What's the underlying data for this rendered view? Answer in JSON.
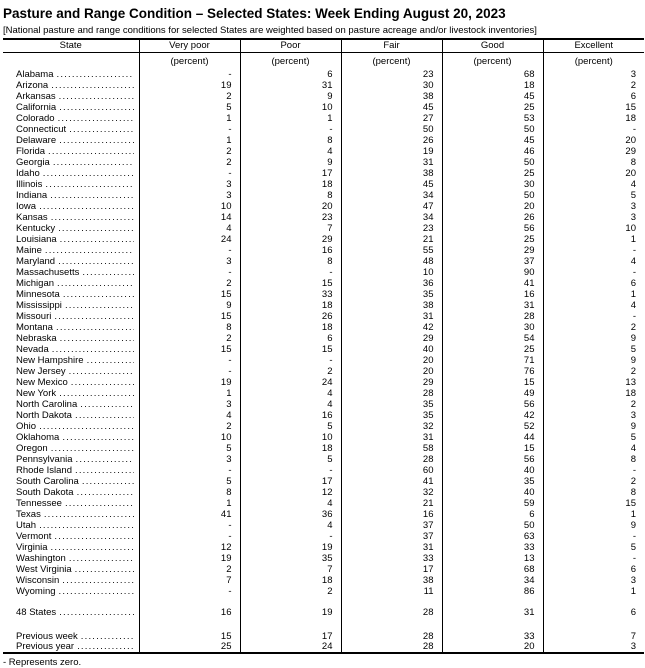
{
  "title": "Pasture and Range Condition – Selected States: Week Ending August 20, 2023",
  "note": "[National pasture and range conditions for selected States are weighted based on pasture acreage and/or livestock inventories]",
  "footnote": "- Represents zero.",
  "table": {
    "columns": [
      "State",
      "Very poor",
      "Poor",
      "Fair",
      "Good",
      "Excellent"
    ],
    "unit_label": "(percent)",
    "zero_symbol": "-",
    "rows": [
      {
        "state": "Alabama",
        "values": [
          "-",
          "6",
          "23",
          "68",
          "3"
        ]
      },
      {
        "state": "Arizona",
        "values": [
          "19",
          "31",
          "30",
          "18",
          "2"
        ]
      },
      {
        "state": "Arkansas",
        "values": [
          "2",
          "9",
          "38",
          "45",
          "6"
        ]
      },
      {
        "state": "California",
        "values": [
          "5",
          "10",
          "45",
          "25",
          "15"
        ]
      },
      {
        "state": "Colorado",
        "values": [
          "1",
          "1",
          "27",
          "53",
          "18"
        ]
      },
      {
        "state": "Connecticut",
        "values": [
          "-",
          "-",
          "50",
          "50",
          "-"
        ]
      },
      {
        "state": "Delaware",
        "values": [
          "1",
          "8",
          "26",
          "45",
          "20"
        ]
      },
      {
        "state": "Florida",
        "values": [
          "2",
          "4",
          "19",
          "46",
          "29"
        ]
      },
      {
        "state": "Georgia",
        "values": [
          "2",
          "9",
          "31",
          "50",
          "8"
        ]
      },
      {
        "state": "Idaho",
        "values": [
          "-",
          "17",
          "38",
          "25",
          "20"
        ]
      },
      {
        "state": "Illinois",
        "values": [
          "3",
          "18",
          "45",
          "30",
          "4"
        ]
      },
      {
        "state": "Indiana",
        "values": [
          "3",
          "8",
          "34",
          "50",
          "5"
        ]
      },
      {
        "state": "Iowa",
        "values": [
          "10",
          "20",
          "47",
          "20",
          "3"
        ]
      },
      {
        "state": "Kansas",
        "values": [
          "14",
          "23",
          "34",
          "26",
          "3"
        ]
      },
      {
        "state": "Kentucky",
        "values": [
          "4",
          "7",
          "23",
          "56",
          "10"
        ]
      },
      {
        "state": "Louisiana",
        "values": [
          "24",
          "29",
          "21",
          "25",
          "1"
        ]
      },
      {
        "state": "Maine",
        "values": [
          "-",
          "16",
          "55",
          "29",
          "-"
        ]
      },
      {
        "state": "Maryland",
        "values": [
          "3",
          "8",
          "48",
          "37",
          "4"
        ]
      },
      {
        "state": "Massachusetts",
        "values": [
          "-",
          "-",
          "10",
          "90",
          "-"
        ]
      },
      {
        "state": "Michigan",
        "values": [
          "2",
          "15",
          "36",
          "41",
          "6"
        ]
      },
      {
        "state": "Minnesota",
        "values": [
          "15",
          "33",
          "35",
          "16",
          "1"
        ]
      },
      {
        "state": "Mississippi",
        "values": [
          "9",
          "18",
          "38",
          "31",
          "4"
        ]
      },
      {
        "state": "Missouri",
        "values": [
          "15",
          "26",
          "31",
          "28",
          "-"
        ]
      },
      {
        "state": "Montana",
        "values": [
          "8",
          "18",
          "42",
          "30",
          "2"
        ]
      },
      {
        "state": "Nebraska",
        "values": [
          "2",
          "6",
          "29",
          "54",
          "9"
        ]
      },
      {
        "state": "Nevada",
        "values": [
          "15",
          "15",
          "40",
          "25",
          "5"
        ]
      },
      {
        "state": "New Hampshire",
        "values": [
          "-",
          "-",
          "20",
          "71",
          "9"
        ]
      },
      {
        "state": "New Jersey",
        "values": [
          "-",
          "2",
          "20",
          "76",
          "2"
        ]
      },
      {
        "state": "New Mexico",
        "values": [
          "19",
          "24",
          "29",
          "15",
          "13"
        ]
      },
      {
        "state": "New York",
        "values": [
          "1",
          "4",
          "28",
          "49",
          "18"
        ]
      },
      {
        "state": "North Carolina",
        "values": [
          "3",
          "4",
          "35",
          "56",
          "2"
        ]
      },
      {
        "state": "North Dakota",
        "values": [
          "4",
          "16",
          "35",
          "42",
          "3"
        ]
      },
      {
        "state": "Ohio",
        "values": [
          "2",
          "5",
          "32",
          "52",
          "9"
        ]
      },
      {
        "state": "Oklahoma",
        "values": [
          "10",
          "10",
          "31",
          "44",
          "5"
        ]
      },
      {
        "state": "Oregon",
        "values": [
          "5",
          "18",
          "58",
          "15",
          "4"
        ]
      },
      {
        "state": "Pennsylvania",
        "values": [
          "3",
          "5",
          "28",
          "56",
          "8"
        ]
      },
      {
        "state": "Rhode Island",
        "values": [
          "-",
          "-",
          "60",
          "40",
          "-"
        ]
      },
      {
        "state": "South Carolina",
        "values": [
          "5",
          "17",
          "41",
          "35",
          "2"
        ]
      },
      {
        "state": "South Dakota",
        "values": [
          "8",
          "12",
          "32",
          "40",
          "8"
        ]
      },
      {
        "state": "Tennessee",
        "values": [
          "1",
          "4",
          "21",
          "59",
          "15"
        ]
      },
      {
        "state": "Texas",
        "values": [
          "41",
          "36",
          "16",
          "6",
          "1"
        ]
      },
      {
        "state": "Utah",
        "values": [
          "-",
          "4",
          "37",
          "50",
          "9"
        ]
      },
      {
        "state": "Vermont",
        "values": [
          "-",
          "-",
          "37",
          "63",
          "-"
        ]
      },
      {
        "state": "Virginia",
        "values": [
          "12",
          "19",
          "31",
          "33",
          "5"
        ]
      },
      {
        "state": "Washington",
        "values": [
          "19",
          "35",
          "33",
          "13",
          "-"
        ]
      },
      {
        "state": "West Virginia",
        "values": [
          "2",
          "7",
          "17",
          "68",
          "6"
        ]
      },
      {
        "state": "Wisconsin",
        "values": [
          "7",
          "18",
          "38",
          "34",
          "3"
        ]
      },
      {
        "state": "Wyoming",
        "values": [
          "-",
          "2",
          "11",
          "86",
          "1"
        ]
      }
    ],
    "total_row": {
      "state": "48 States",
      "values": [
        "16",
        "19",
        "28",
        "31",
        "6"
      ]
    },
    "previous_rows": [
      {
        "state": "Previous week",
        "values": [
          "15",
          "17",
          "28",
          "33",
          "7"
        ]
      },
      {
        "state": "Previous year",
        "values": [
          "25",
          "24",
          "28",
          "20",
          "3"
        ]
      }
    ]
  }
}
